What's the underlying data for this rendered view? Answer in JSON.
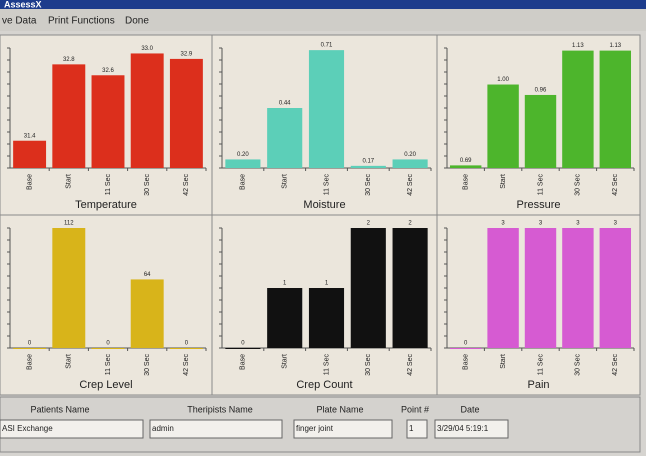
{
  "window": {
    "title": "AssessX"
  },
  "menu": [
    "ve Data",
    "Print Functions",
    "Done"
  ],
  "chart_data": [
    {
      "type": "bar",
      "title": "Temperature",
      "categories": [
        "Base",
        "Start",
        "11 Sec",
        "30 Sec",
        "42 Sec"
      ],
      "values": [
        31.4,
        32.8,
        32.6,
        33.0,
        32.9
      ],
      "value_labels": [
        "31.4",
        "32.8",
        "32.6",
        "33.0",
        "32.9"
      ],
      "color": "#dc2f1c",
      "ylim": [
        30.9,
        33.1
      ]
    },
    {
      "type": "bar",
      "title": "Moisture",
      "categories": [
        "Base",
        "Start",
        "11 Sec",
        "30 Sec",
        "42 Sec"
      ],
      "values": [
        0.2,
        0.44,
        0.71,
        0.17,
        0.2
      ],
      "value_labels": [
        "0.20",
        "0.44",
        "0.71",
        "0.17",
        "0.20"
      ],
      "color": "#5ccfb8",
      "ylim": [
        0.16,
        0.72
      ]
    },
    {
      "type": "bar",
      "title": "Pressure",
      "categories": [
        "Base",
        "Start",
        "11 Sec",
        "30 Sec",
        "42 Sec"
      ],
      "values": [
        0.69,
        1.0,
        0.96,
        1.13,
        1.13
      ],
      "value_labels": [
        "0.69",
        "1.00",
        "0.96",
        "1.13",
        "1.13"
      ],
      "color": "#4db52c",
      "ylim": [
        0.68,
        1.14
      ]
    },
    {
      "type": "bar",
      "title": "Crep Level",
      "categories": [
        "Base",
        "Start",
        "11 Sec",
        "30 Sec",
        "42 Sec"
      ],
      "values": [
        0,
        112,
        0,
        64,
        0
      ],
      "color": "#d8b41a",
      "ylim": [
        0,
        112
      ]
    },
    {
      "type": "bar",
      "title": "Crep Count",
      "categories": [
        "Base",
        "Start",
        "11 Sec",
        "30 Sec",
        "42 Sec"
      ],
      "values": [
        0,
        1,
        1,
        2,
        2
      ],
      "color": "#111111",
      "ylim": [
        0,
        2
      ]
    },
    {
      "type": "bar",
      "title": "Pain",
      "categories": [
        "Base",
        "Start",
        "11 Sec",
        "30 Sec",
        "42 Sec"
      ],
      "values": [
        0,
        3,
        3,
        3,
        3
      ],
      "color": "#d65bd2",
      "ylim": [
        0,
        3
      ]
    }
  ],
  "form": {
    "fields": [
      {
        "label": "Patients Name",
        "value": "ASI Exchange"
      },
      {
        "label": "Theripists Name",
        "value": "admin"
      },
      {
        "label": "Plate Name",
        "value": "finger joint"
      },
      {
        "label": "Point #",
        "value": "1"
      },
      {
        "label": "Date",
        "value": "3/29/04 5:19:1"
      }
    ]
  }
}
